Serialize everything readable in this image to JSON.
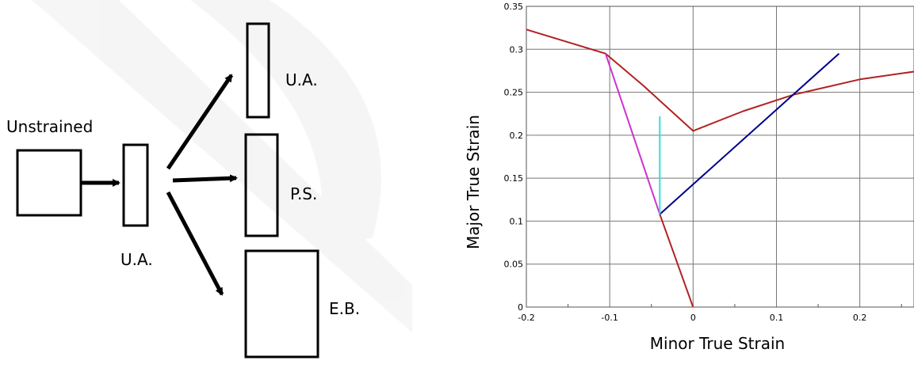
{
  "diagram": {
    "unstrained_label": "Unstrained",
    "intermediate_label": "U.A.",
    "branch_labels": [
      "U.A.",
      "P.S.",
      "E.B."
    ]
  },
  "chart_data": {
    "type": "line",
    "title": "",
    "xlabel": "Minor True Strain",
    "ylabel": "Major True Strain",
    "xlim": [
      -0.2,
      0.265
    ],
    "ylim": [
      0,
      0.35
    ],
    "x_ticks": [
      "-0.2",
      "-0.1",
      "0",
      "0.1",
      "0.2"
    ],
    "y_ticks": [
      "0",
      "0.05",
      "0.1",
      "0.15",
      "0.2",
      "0.25",
      "0.3",
      "0.35"
    ],
    "grid": true,
    "legend": "none",
    "series": [
      {
        "color": "#b22222",
        "x": [
          -0.2,
          -0.105,
          -0.06,
          0.0,
          0.06,
          0.12,
          0.2,
          0.265
        ],
        "y": [
          0.323,
          0.295,
          0.258,
          0.205,
          0.228,
          0.247,
          0.265,
          0.274
        ]
      },
      {
        "color": "#b22222",
        "x": [
          -0.04,
          0.0
        ],
        "y": [
          0.108,
          0.0
        ]
      },
      {
        "color": "#cc33cc",
        "x": [
          -0.105,
          -0.04
        ],
        "y": [
          0.295,
          0.108
        ]
      },
      {
        "color": "#00008b",
        "x": [
          -0.04,
          0.175
        ],
        "y": [
          0.108,
          0.295
        ]
      },
      {
        "color": "#33dddd",
        "x": [
          -0.04,
          -0.04
        ],
        "y": [
          0.108,
          0.222
        ]
      }
    ]
  }
}
